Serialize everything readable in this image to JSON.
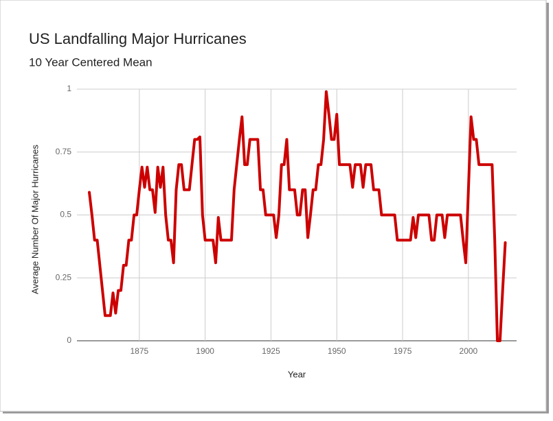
{
  "chart_data": {
    "type": "line",
    "title": "US Landfalling Major Hurricanes",
    "subtitle": "10 Year Centered Mean",
    "xlabel": "Year",
    "ylabel": "Average Number Of Major Hurricanes",
    "x": [
      1856,
      1857,
      1858,
      1859,
      1860,
      1861,
      1862,
      1863,
      1864,
      1865,
      1866,
      1867,
      1868,
      1869,
      1870,
      1871,
      1872,
      1873,
      1874,
      1875,
      1876,
      1877,
      1878,
      1879,
      1880,
      1881,
      1882,
      1883,
      1884,
      1885,
      1886,
      1887,
      1888,
      1889,
      1890,
      1891,
      1892,
      1893,
      1894,
      1895,
      1896,
      1897,
      1898,
      1899,
      1900,
      1901,
      1902,
      1903,
      1904,
      1905,
      1906,
      1907,
      1908,
      1909,
      1910,
      1911,
      1912,
      1913,
      1914,
      1915,
      1916,
      1917,
      1918,
      1919,
      1920,
      1921,
      1922,
      1923,
      1924,
      1925,
      1926,
      1927,
      1928,
      1929,
      1930,
      1931,
      1932,
      1933,
      1934,
      1935,
      1936,
      1937,
      1938,
      1939,
      1940,
      1941,
      1942,
      1943,
      1944,
      1945,
      1946,
      1947,
      1948,
      1949,
      1950,
      1951,
      1952,
      1953,
      1954,
      1955,
      1956,
      1957,
      1958,
      1959,
      1960,
      1961,
      1962,
      1963,
      1964,
      1965,
      1966,
      1967,
      1968,
      1969,
      1970,
      1971,
      1972,
      1973,
      1974,
      1975,
      1976,
      1977,
      1978,
      1979,
      1980,
      1981,
      1982,
      1983,
      1984,
      1985,
      1986,
      1987,
      1988,
      1989,
      1990,
      1991,
      1992,
      1993,
      1994,
      1995,
      1996,
      1997,
      1998,
      1999,
      2000,
      2001,
      2002,
      2003,
      2004,
      2005,
      2006,
      2007,
      2008,
      2009,
      2010,
      2011,
      2012,
      2013,
      2014
    ],
    "values": [
      0.59,
      0.5,
      0.4,
      0.4,
      0.3,
      0.2,
      0.1,
      0.1,
      0.1,
      0.19,
      0.11,
      0.2,
      0.2,
      0.3,
      0.3,
      0.4,
      0.4,
      0.5,
      0.5,
      0.6,
      0.69,
      0.61,
      0.69,
      0.6,
      0.6,
      0.51,
      0.69,
      0.61,
      0.69,
      0.5,
      0.4,
      0.4,
      0.31,
      0.6,
      0.7,
      0.7,
      0.6,
      0.6,
      0.6,
      0.7,
      0.8,
      0.8,
      0.81,
      0.5,
      0.4,
      0.4,
      0.4,
      0.4,
      0.31,
      0.49,
      0.4,
      0.4,
      0.4,
      0.4,
      0.4,
      0.6,
      0.7,
      0.8,
      0.89,
      0.7,
      0.7,
      0.8,
      0.8,
      0.8,
      0.8,
      0.6,
      0.6,
      0.5,
      0.5,
      0.5,
      0.5,
      0.41,
      0.5,
      0.7,
      0.7,
      0.8,
      0.6,
      0.6,
      0.6,
      0.5,
      0.5,
      0.6,
      0.6,
      0.41,
      0.5,
      0.6,
      0.6,
      0.7,
      0.7,
      0.8,
      0.99,
      0.9,
      0.8,
      0.8,
      0.9,
      0.7,
      0.7,
      0.7,
      0.7,
      0.7,
      0.61,
      0.7,
      0.7,
      0.7,
      0.61,
      0.7,
      0.7,
      0.7,
      0.6,
      0.6,
      0.6,
      0.5,
      0.5,
      0.5,
      0.5,
      0.5,
      0.5,
      0.4,
      0.4,
      0.4,
      0.4,
      0.4,
      0.4,
      0.49,
      0.41,
      0.5,
      0.5,
      0.5,
      0.5,
      0.5,
      0.4,
      0.4,
      0.5,
      0.5,
      0.5,
      0.41,
      0.5,
      0.5,
      0.5,
      0.5,
      0.5,
      0.5,
      0.4,
      0.31,
      0.6,
      0.89,
      0.8,
      0.8,
      0.7,
      0.7,
      0.7,
      0.7,
      0.7,
      0.7,
      0.4,
      0,
      0,
      0.2,
      0.39
    ],
    "color": "#cc0000",
    "xlim": [
      1851.3,
      2018.3
    ],
    "xticks": [
      1875,
      1900,
      1925,
      1950,
      1975,
      2000
    ],
    "ylim": [
      0,
      1
    ],
    "yticks": [
      0,
      0.25,
      0.5,
      0.75,
      1
    ],
    "grid": true
  }
}
